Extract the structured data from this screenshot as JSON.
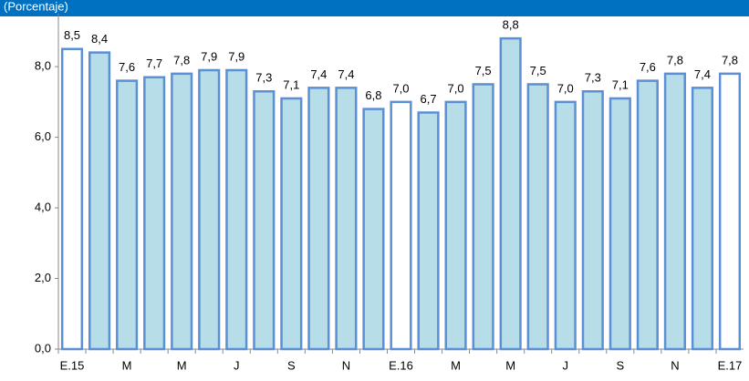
{
  "chart_data": {
    "type": "bar",
    "title": "(Porcentaje)",
    "categories": [
      "E.15",
      null,
      "M",
      null,
      "M",
      null,
      "J",
      null,
      "S",
      null,
      "N",
      null,
      "E.16",
      null,
      "M",
      null,
      "M",
      null,
      "J",
      null,
      "S",
      null,
      "N",
      null,
      "E.17"
    ],
    "values": [
      8.5,
      8.4,
      7.6,
      7.7,
      7.8,
      7.9,
      7.9,
      7.3,
      7.1,
      7.4,
      7.4,
      6.8,
      7.0,
      6.7,
      7.0,
      7.5,
      8.8,
      7.5,
      7.0,
      7.3,
      7.1,
      7.6,
      7.8,
      7.4,
      7.8
    ],
    "value_labels": [
      "8,5",
      "8,4",
      "7,6",
      "7,7",
      "7,8",
      "7,9",
      "7,9",
      "7,3",
      "7,1",
      "7,4",
      "7,4",
      "6,8",
      "7,0",
      "6,7",
      "7,0",
      "7,5",
      "8,8",
      "7,5",
      "7,0",
      "7,3",
      "7,1",
      "7,6",
      "7,8",
      "7,4",
      "7,8"
    ],
    "colors": [
      "#ffffff",
      "#b7dde8",
      "#b7dde8",
      "#b7dde8",
      "#b7dde8",
      "#b7dde8",
      "#b7dde8",
      "#b7dde8",
      "#b7dde8",
      "#b7dde8",
      "#b7dde8",
      "#b7dde8",
      "#ffffff",
      "#b7dde8",
      "#b7dde8",
      "#b7dde8",
      "#b7dde8",
      "#b7dde8",
      "#b7dde8",
      "#b7dde8",
      "#b7dde8",
      "#b7dde8",
      "#b7dde8",
      "#b7dde8",
      "#ffffff"
    ],
    "edge_color": "#5b8fd6",
    "ylim": [
      0,
      9.5
    ],
    "yticks": [
      {
        "value": 0,
        "label": "0,0"
      },
      {
        "value": 2,
        "label": "2,0"
      },
      {
        "value": 4,
        "label": "4,0"
      },
      {
        "value": 6,
        "label": "6,0"
      },
      {
        "value": 8,
        "label": "8,0"
      }
    ],
    "grid": false
  }
}
